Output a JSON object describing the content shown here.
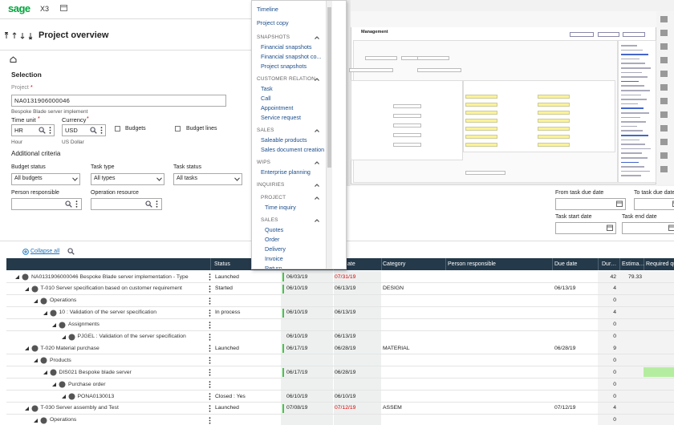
{
  "header": {
    "logo": "sage",
    "product": "X3"
  },
  "page": {
    "title": "Project overview"
  },
  "selection": {
    "title": "Selection",
    "required": "*",
    "project_label": "Project",
    "project_value": "NA0131906000046",
    "project_desc": "Bespoke Blade server implement",
    "time_unit_label": "Time unit",
    "time_unit_value": "HR",
    "time_unit_desc": "Hour",
    "currency_label": "Currency",
    "currency_value": "USD",
    "currency_desc": "US Dollar",
    "budgets": "Budgets",
    "budget_lines": "Budget lines"
  },
  "criteria": {
    "title": "Additional criteria",
    "budget_status_label": "Budget status",
    "budget_status_value": "All budgets",
    "task_type_label": "Task type",
    "task_type_value": "All types",
    "task_status_label": "Task status",
    "task_status_value": "All tasks",
    "person_label": "Person responsible",
    "resource_label": "Operation resource",
    "from_due_label": "From task due date",
    "to_due_label": "To task due date",
    "start_label": "Task start date",
    "end_label": "Task end date"
  },
  "menu": {
    "sections": [
      {
        "items": [
          "Timeline",
          "Project copy"
        ]
      },
      {
        "heading": "SNAPSHOTS",
        "items": [
          "Financial snapshots",
          "Financial snapshot co...",
          "Project snapshots"
        ]
      },
      {
        "heading": "CUSTOMER RELATION",
        "items": [
          "Task",
          "Call",
          "Appointment",
          "Service request"
        ]
      },
      {
        "heading": "SALES",
        "items": [
          "Saleable products",
          "Sales document creation"
        ]
      },
      {
        "heading": "WIPS",
        "items": [
          "Enterprise planning"
        ]
      },
      {
        "heading": "INQUIRIES",
        "subsections": [
          {
            "heading": "PROJECT",
            "items": [
              "Time inquiry"
            ]
          },
          {
            "heading": "SALES",
            "items": [
              "Quotes",
              "Order",
              "Delivery",
              "Invoice",
              "Return"
            ]
          }
        ]
      }
    ]
  },
  "screenshot": {
    "title": "Management"
  },
  "grid": {
    "collapse": "Collapse all",
    "columns": [
      "Status",
      "ate",
      "Category",
      "Person responsible",
      "Due date",
      "Dur…",
      "Estima…",
      "Required qu…"
    ],
    "rows": [
      {
        "label": "NA0131906000046 Bespoke Blade server implementation - Type",
        "status": "Launched",
        "start": "06/03/19",
        "end": "07/31/19",
        "duration": "42",
        "estimate": "79.33"
      },
      {
        "label": "T-010 Server specification based on customer requirement",
        "status": "Started",
        "start": "06/10/19",
        "end": "06/13/19",
        "category": "DESIGN",
        "due": "06/13/19",
        "duration": "4"
      },
      {
        "label": "Operations",
        "duration": "0"
      },
      {
        "label": "10 : Validation of the server specification",
        "status": "In process",
        "start": "06/10/19",
        "end": "06/13/19",
        "duration": "4"
      },
      {
        "label": "Assignments",
        "duration": "0"
      },
      {
        "label": "PJGEL : Validation of the server specification",
        "start": "06/10/19",
        "end": "06/13/19",
        "duration": "0"
      },
      {
        "label": "T-020 Material purchase",
        "status": "Launched",
        "start": "06/17/19",
        "end": "06/28/19",
        "category": "MATERIAL",
        "due": "06/28/19",
        "duration": "9"
      },
      {
        "label": "Products",
        "duration": "0"
      },
      {
        "label": "DIS021 Bespoke blade server",
        "start": "06/17/19",
        "end": "06/28/19",
        "duration": "0"
      },
      {
        "label": "Purchase order",
        "duration": "0"
      },
      {
        "label": "PONA0130013",
        "status": "Closed : Yes",
        "start": "06/10/19",
        "end": "06/10/19",
        "duration": "0"
      },
      {
        "label": "T-030 Server assembly and Test",
        "status": "Launched",
        "start": "07/08/19",
        "end": "07/12/19",
        "category": "ASSEM",
        "due": "07/12/19",
        "duration": "4"
      },
      {
        "label": "Operations",
        "duration": "0"
      }
    ]
  }
}
